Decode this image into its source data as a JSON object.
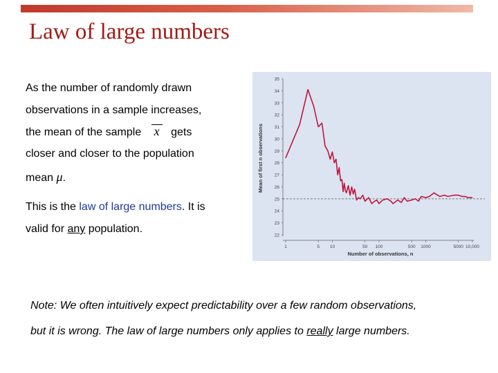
{
  "slide": {
    "title": "Law of large numbers",
    "lines": {
      "l1": "As the number of randomly drawn",
      "l2": "observations in a sample increases,",
      "l3a": "the mean of the sample",
      "l3x": "x",
      "l3b": "gets",
      "l4": "closer and closer to the population",
      "l5a": "mean",
      "l5mu": "μ",
      "l5b": ".",
      "l6a": "This is the",
      "l6b": "law of large numbers",
      "l6c": ". It is",
      "l7a": "valid for",
      "l7b": "any",
      "l7c": "population."
    },
    "note": {
      "l1": "Note: We often intuitively expect predictability over a few random observations,",
      "l2a": "but it is wrong. The law of large numbers only applies to",
      "l2b": "really",
      "l2c": "large numbers."
    }
  },
  "chart_data": {
    "type": "line",
    "xlabel": "Number of observations, n",
    "ylabel": "Mean of first n observations",
    "x_scale": "log",
    "xlim": [
      1,
      10000
    ],
    "ylim": [
      22,
      35
    ],
    "y_ticks": [
      "22",
      "23",
      "24",
      "25",
      "26",
      "27",
      "28",
      "29",
      "30",
      "31",
      "32",
      "33",
      "34",
      "35"
    ],
    "x_ticks": [
      {
        "value": 1,
        "label": "1"
      },
      {
        "value": 5,
        "label": "5"
      },
      {
        "value": 10,
        "label": "10"
      },
      {
        "value": 50,
        "label": "50"
      },
      {
        "value": 100,
        "label": "100"
      },
      {
        "value": 500,
        "label": "500"
      },
      {
        "value": 1000,
        "label": "1000"
      },
      {
        "value": 5000,
        "label": "5000"
      },
      {
        "value": 10000,
        "label": "10,000"
      }
    ],
    "reference_line": {
      "y": 25,
      "style": "dashed"
    },
    "series": [
      {
        "color": "#c0143c",
        "x": [
          1,
          2,
          3,
          4,
          5,
          6,
          7,
          8,
          9,
          10,
          11,
          12,
          13,
          14,
          15,
          16,
          17,
          18,
          19,
          20,
          22,
          24,
          26,
          28,
          30,
          33,
          36,
          40,
          45,
          50,
          60,
          70,
          80,
          90,
          100,
          120,
          150,
          180,
          200,
          250,
          300,
          350,
          400,
          500,
          600,
          700,
          800,
          1000,
          1200,
          1500,
          2000,
          2500,
          3000,
          4000,
          5000,
          6000,
          7000,
          8000,
          10000
        ],
        "y": [
          28.4,
          31.2,
          34.1,
          32.7,
          31.0,
          31.3,
          29.4,
          29.0,
          28.3,
          28.9,
          28.0,
          28.3,
          27.0,
          27.6,
          26.5,
          26.6,
          25.6,
          26.3,
          25.7,
          25.5,
          26.1,
          25.3,
          26.0,
          25.4,
          25.8,
          24.9,
          25.1,
          25.0,
          25.3,
          24.8,
          25.1,
          24.6,
          24.8,
          24.9,
          24.6,
          24.9,
          25.0,
          24.8,
          24.6,
          24.9,
          24.7,
          25.1,
          24.8,
          24.9,
          25.0,
          24.8,
          25.2,
          25.1,
          25.2,
          25.5,
          25.2,
          25.3,
          25.2,
          25.3,
          25.3,
          25.2,
          25.2,
          25.1,
          25.1
        ]
      }
    ],
    "grid": false,
    "background": "#dce4f2"
  }
}
